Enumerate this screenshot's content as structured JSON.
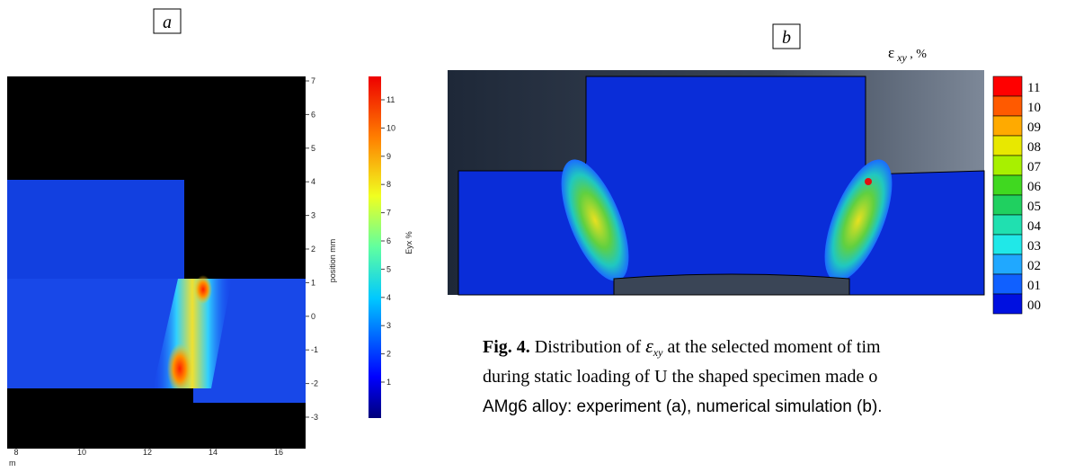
{
  "panel_a": {
    "label": "a",
    "y_ticks": [
      7,
      6,
      5,
      4,
      3,
      2,
      1,
      0,
      -1,
      -2,
      -3
    ],
    "y_label": "position mm",
    "x_ticks": [
      8,
      10,
      12,
      14,
      16
    ],
    "x_unit": "m",
    "colorbar_ticks": [
      11,
      10,
      9,
      8,
      7,
      6,
      5,
      4,
      3,
      2,
      1
    ],
    "colorbar_label": "Eyx %"
  },
  "panel_b": {
    "label": "b",
    "colorbar_symbol": "ε",
    "colorbar_subscript": "xy",
    "colorbar_unit": " , %",
    "levels": [
      "11",
      "10",
      "09",
      "08",
      "07",
      "06",
      "05",
      "04",
      "03",
      "02",
      "01",
      "00"
    ]
  },
  "caption": {
    "number": "Fig. 4.",
    "line1_prefix": " Distribution of ",
    "symbol": "ε",
    "symbol_subscript": "xy",
    "line1_suffix": " at the selected moment of tim",
    "line2": "during static loading of U the shaped specimen made o",
    "line3": "AMg6 alloy: experiment (a), numerical simulation (b)."
  }
}
